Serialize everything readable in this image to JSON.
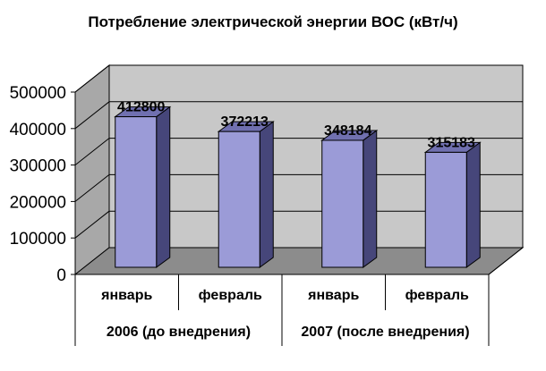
{
  "chart_data": {
    "type": "bar",
    "title": "Потребление электрической энергии ВОС (кВт/ч)",
    "categories": [
      "январь",
      "февраль",
      "январь",
      "февраль"
    ],
    "groups": [
      {
        "label": "2006 (до внедрения)",
        "span": 2
      },
      {
        "label": "2007 (после внедрения)",
        "span": 2
      }
    ],
    "values": [
      412800,
      372213,
      348184,
      315183
    ],
    "ylim": [
      0,
      500000
    ],
    "yticks": [
      0,
      100000,
      200000,
      300000,
      400000,
      500000
    ],
    "grid": true,
    "three_d": true,
    "xlabel": "",
    "ylabel": ""
  },
  "colors": {
    "bar_front": "#9b9bd7",
    "bar_side": "#46467a",
    "bar_top": "#7070b0",
    "wall": "#c8c8c8",
    "side_wall": "#a8a8a8",
    "floor": "#8c8c8c",
    "grid": "#000000"
  }
}
